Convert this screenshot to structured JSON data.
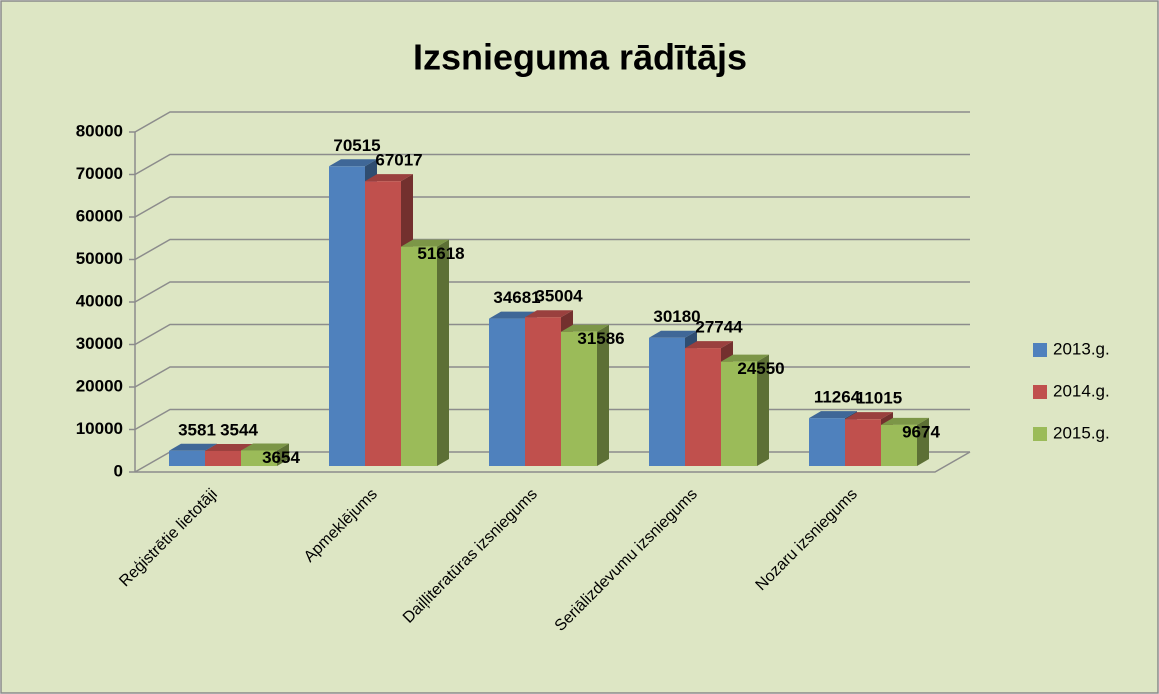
{
  "chart_data": {
    "type": "bar3d",
    "title": "Izsnieguma rādītājs",
    "categories": [
      "Reģistrētie lietotāji",
      "Apmeklējums",
      "Daiļliteratūras izsniegums",
      "Seriālizdevumu izsniegums",
      "Nozaru izsniegums"
    ],
    "series": [
      {
        "name": "2013.g.",
        "color": "#4f81bd",
        "values": [
          3581,
          70515,
          34681,
          30180,
          11264
        ]
      },
      {
        "name": "2014.g.",
        "color": "#c0504d",
        "values": [
          3544,
          67017,
          35004,
          27744,
          11015
        ]
      },
      {
        "name": "2015.g.",
        "color": "#9bbb59",
        "values": [
          3654,
          51618,
          31586,
          24550,
          9674
        ]
      }
    ],
    "ylim": [
      0,
      80000
    ],
    "yticks": [
      0,
      10000,
      20000,
      30000,
      40000,
      50000,
      60000,
      70000,
      80000
    ],
    "grid": true,
    "legend": "right"
  }
}
